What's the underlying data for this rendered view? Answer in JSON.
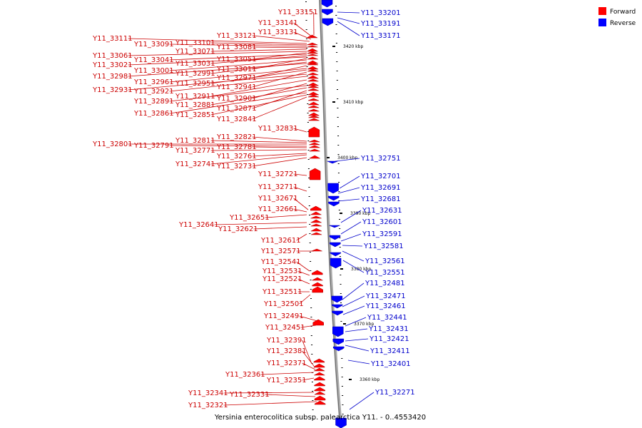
{
  "title": "Yersinia enterocolitica subsp. palearctica Y11. - 0..4553420",
  "legend": [
    {
      "label": "Forward",
      "color": "#ff0000"
    },
    {
      "label": "Reverse",
      "color": "#0000ff"
    }
  ],
  "colors": {
    "forward": "#ff0000",
    "reverse": "#0000ff",
    "forward_text": "#cc0000",
    "reverse_text": "#0000cc",
    "backbone": "#999999"
  },
  "ticks_kbp": [
    "3420 kbp",
    "3410 kbp",
    "3400 kbp",
    "3390 kbp",
    "3380 kbp",
    "3370 kbp",
    "3360 kbp"
  ],
  "forward_genes": [
    "Y11_33151",
    "Y11_33141",
    "Y11_33131",
    "Y11_33121",
    "Y11_33111",
    "Y11_33101",
    "Y11_33091",
    "Y11_33081",
    "Y11_33071",
    "Y11_33061",
    "Y11_33051",
    "Y11_33041",
    "Y11_33031",
    "Y11_33021",
    "Y11_33011",
    "Y11_33001",
    "Y11_32991",
    "Y11_32981",
    "Y11_32971",
    "Y11_32961",
    "Y11_32951",
    "Y11_32941",
    "Y11_32931",
    "Y11_32921",
    "Y11_32911",
    "Y11_32901",
    "Y11_32891",
    "Y11_32881",
    "Y11_32871",
    "Y11_32861",
    "Y11_32851",
    "Y11_32841",
    "Y11_32831",
    "Y11_32821",
    "Y11_32811",
    "Y11_32801",
    "Y11_32791",
    "Y11_32781",
    "Y11_32771",
    "Y11_32761",
    "Y11_32741",
    "Y11_32731",
    "Y11_32721",
    "Y11_32711",
    "Y11_32671",
    "Y11_32661",
    "Y11_32651",
    "Y11_32641",
    "Y11_32621",
    "Y11_32611",
    "Y11_32571",
    "Y11_32541",
    "Y11_32531",
    "Y11_32521",
    "Y11_32511",
    "Y11_32501",
    "Y11_32491",
    "Y11_32451",
    "Y11_32391",
    "Y11_32381",
    "Y11_32371",
    "Y11_32361",
    "Y11_32351",
    "Y11_32341",
    "Y11_32331",
    "Y11_32321"
  ],
  "reverse_genes": [
    "Y11_33201",
    "Y11_33191",
    "Y11_33171",
    "Y11_32751",
    "Y11_32701",
    "Y11_32691",
    "Y11_32681",
    "Y11_32631",
    "Y11_32601",
    "Y11_32591",
    "Y11_32581",
    "Y11_32561",
    "Y11_32551",
    "Y11_32481",
    "Y11_32471",
    "Y11_32461",
    "Y11_32441",
    "Y11_32431",
    "Y11_32421",
    "Y11_32411",
    "Y11_32401",
    "Y11_32271"
  ]
}
